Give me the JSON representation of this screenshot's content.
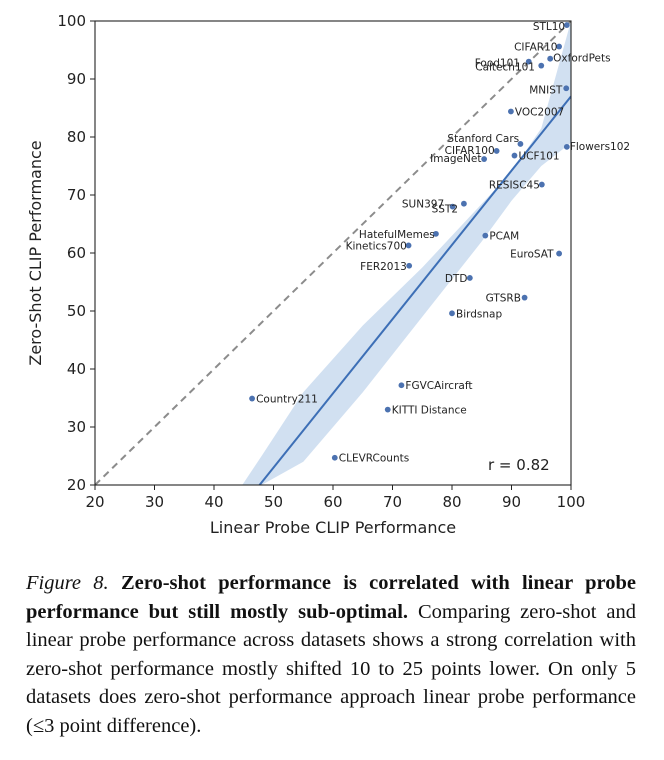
{
  "chart_data": {
    "type": "scatter",
    "xlabel": "Linear Probe CLIP Performance",
    "ylabel": "Zero-Shot CLIP Performance",
    "xlim": [
      20,
      100
    ],
    "ylim": [
      20,
      100
    ],
    "xticks": [
      "20",
      "30",
      "40",
      "50",
      "60",
      "70",
      "80",
      "90",
      "100"
    ],
    "yticks": [
      "20",
      "30",
      "40",
      "50",
      "60",
      "70",
      "80",
      "90",
      "100"
    ],
    "grid": false,
    "identity_line": "dashed",
    "annotation": "r = 0.82",
    "regression": {
      "slope": 1.28,
      "intercept": -41.0
    },
    "confidence_band": [
      [
        35,
        20,
        5.0
      ],
      [
        48,
        20,
        25.0
      ],
      [
        55,
        24,
        36.0
      ],
      [
        65,
        36,
        47.5
      ],
      [
        75,
        49,
        57.5
      ],
      [
        85,
        62,
        68.5
      ],
      [
        90,
        69,
        74.0
      ],
      [
        95,
        75,
        81.5
      ],
      [
        100,
        79,
        100
      ]
    ],
    "point_color": "#4c72b0",
    "line_color": "#3d6fb6",
    "band_color": "#c9dbee",
    "points": [
      {
        "label": "STL10",
        "x": 99.3,
        "y": 99.3
      },
      {
        "label": "CIFAR10",
        "x": 98.0,
        "y": 95.6
      },
      {
        "label": "Food101",
        "x": 92.9,
        "y": 93.0
      },
      {
        "label": "OxfordPets",
        "x": 96.5,
        "y": 93.5
      },
      {
        "label": "Caltech101",
        "x": 95.0,
        "y": 92.3
      },
      {
        "label": "MNIST",
        "x": 99.2,
        "y": 88.4
      },
      {
        "label": "VOC2007",
        "x": 89.9,
        "y": 84.4
      },
      {
        "label": "Stanford Cars",
        "x": 91.5,
        "y": 78.8
      },
      {
        "label": "CIFAR100",
        "x": 87.5,
        "y": 77.6
      },
      {
        "label": "ImageNet",
        "x": 85.4,
        "y": 76.2
      },
      {
        "label": "UCF101",
        "x": 90.5,
        "y": 76.8
      },
      {
        "label": "Flowers102",
        "x": 99.3,
        "y": 78.3
      },
      {
        "label": "RESISC45",
        "x": 95.1,
        "y": 71.8
      },
      {
        "label": "SUN397",
        "x": 82.0,
        "y": 68.5
      },
      {
        "label": "SST2",
        "x": 80.1,
        "y": 68.0
      },
      {
        "label": "HatefulMemes",
        "x": 77.3,
        "y": 63.3
      },
      {
        "label": "Kinetics700",
        "x": 72.7,
        "y": 61.3
      },
      {
        "label": "PCAM",
        "x": 85.6,
        "y": 63.0
      },
      {
        "label": "EuroSAT",
        "x": 98.0,
        "y": 59.9
      },
      {
        "label": "FER2013",
        "x": 72.8,
        "y": 57.8
      },
      {
        "label": "DTD",
        "x": 83.0,
        "y": 55.7
      },
      {
        "label": "GTSRB",
        "x": 92.2,
        "y": 52.3
      },
      {
        "label": "Birdsnap",
        "x": 80.0,
        "y": 49.6
      },
      {
        "label": "FGVCAircraft",
        "x": 71.5,
        "y": 37.2
      },
      {
        "label": "Country211",
        "x": 46.4,
        "y": 34.9
      },
      {
        "label": "KITTI Distance",
        "x": 69.2,
        "y": 33.0
      },
      {
        "label": "CLEVRCounts",
        "x": 60.3,
        "y": 24.7
      }
    ]
  },
  "caption": {
    "label": "Figure 8.",
    "bold": "Zero-shot performance is correlated with linear probe performance but still mostly sub-optimal.",
    "text": "Comparing zero-shot and linear probe performance across datasets shows a strong correlation with zero-shot performance mostly shifted 10 to 25 points lower. On only 5 datasets does zero-shot performance approach linear probe performance (≤3 point difference)."
  }
}
